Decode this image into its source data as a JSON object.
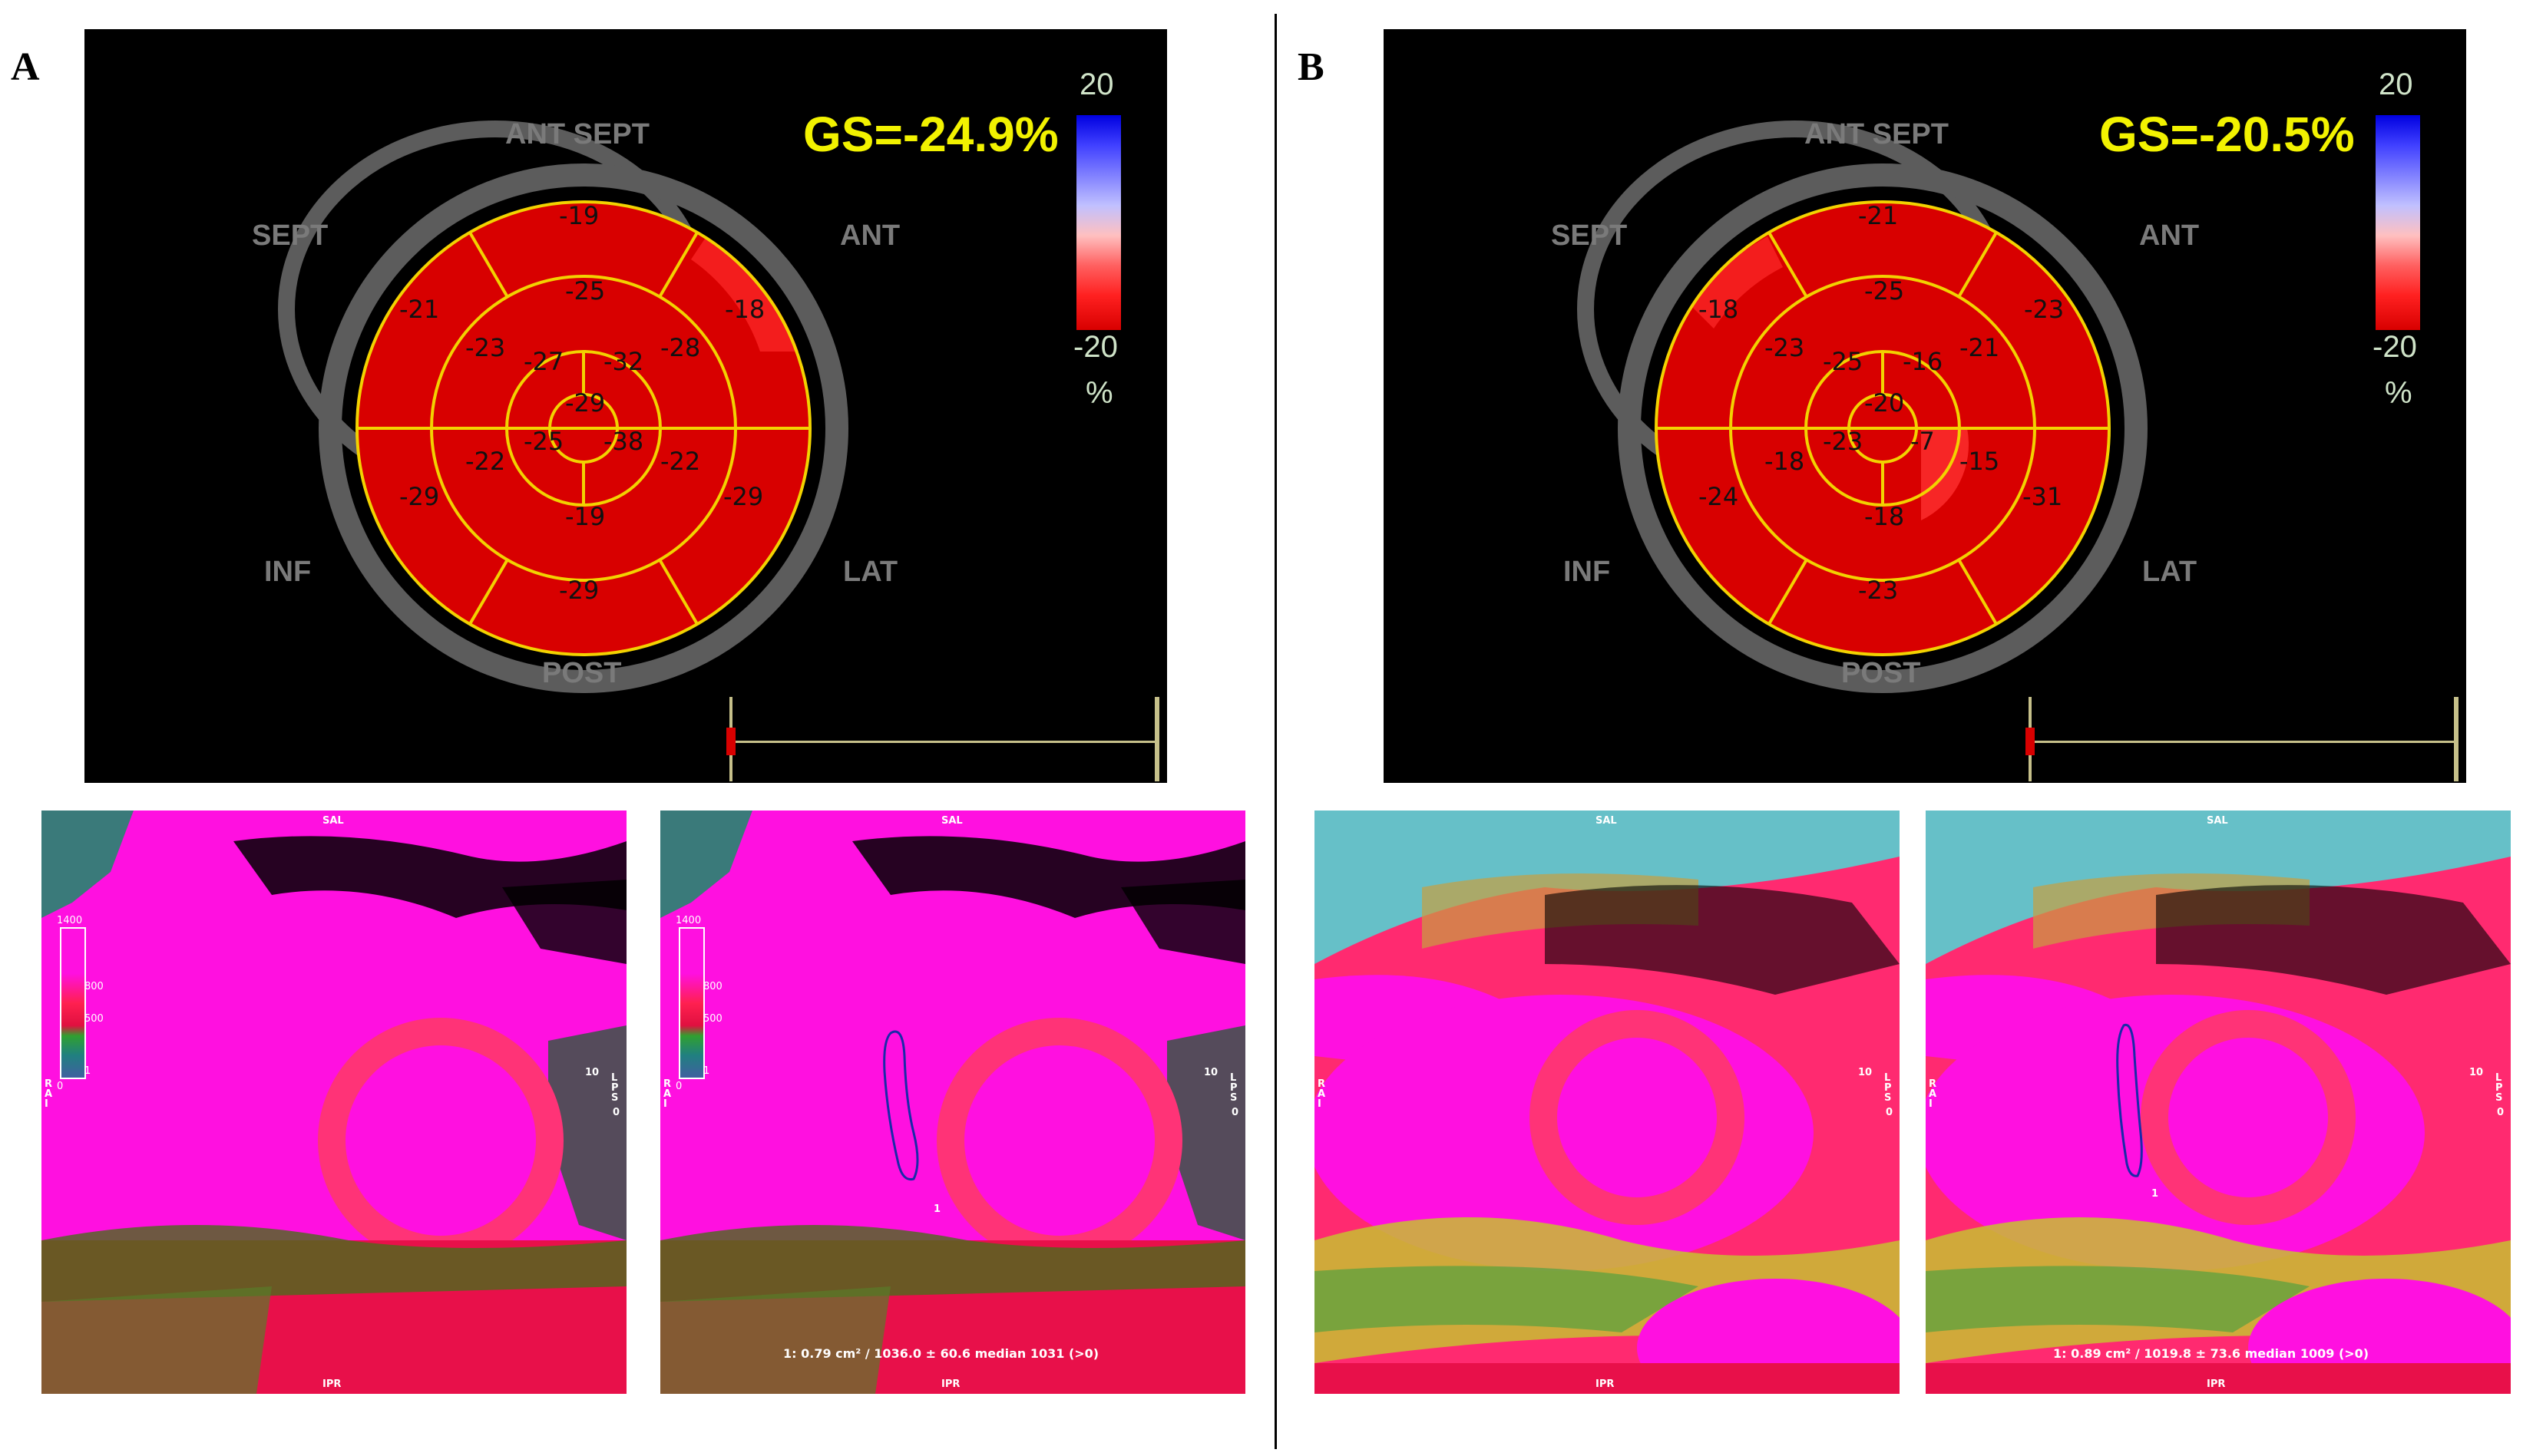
{
  "panels": {
    "A": {
      "letter": "A",
      "gs": "GS=-24.9%",
      "labels": {
        "ant_sept": "ANT SEPT",
        "sept": "SEPT",
        "ant": "ANT",
        "inf": "INF",
        "lat": "LAT",
        "post": "POST"
      },
      "scale": {
        "top": "20",
        "bottom": "-20",
        "unit": "%"
      },
      "segments": {
        "basal": [
          "-19",
          "-18",
          "-29",
          "-29",
          "-29",
          "-21"
        ],
        "mid": [
          "-25",
          "-28",
          "-22",
          "-19",
          "-22",
          "-23"
        ],
        "apical": [
          "-32",
          "-38",
          "-25",
          "-27"
        ],
        "apex": "-29"
      },
      "maps": {
        "top_label": "SAL",
        "bottom_label": "IPR",
        "left_orient": "R A I",
        "right_orient": "L P S",
        "right_num": "10",
        "right_zero": "0",
        "legend": [
          "1400",
          "800",
          "500",
          "1",
          "0"
        ],
        "roi_label": "1",
        "measurement": "1: 0.79 cm² / 1036.0 ± 60.6 median 1031 (>0)"
      }
    },
    "B": {
      "letter": "B",
      "gs": "GS=-20.5%",
      "labels": {
        "ant_sept": "ANT SEPT",
        "sept": "SEPT",
        "ant": "ANT",
        "inf": "INF",
        "lat": "LAT",
        "post": "POST"
      },
      "scale": {
        "top": "20",
        "bottom": "-20",
        "unit": "%"
      },
      "segments": {
        "basal": [
          "-21",
          "-23",
          "-31",
          "-23",
          "-24",
          "-18"
        ],
        "mid": [
          "-25",
          "-21",
          "-15",
          "-18",
          "-18",
          "-23"
        ],
        "apical": [
          "-16",
          "-7",
          "-23",
          "-25"
        ],
        "apex": "-20"
      },
      "maps": {
        "top_label": "SAL",
        "bottom_label": "IPR",
        "left_orient": "R A I",
        "right_orient": "L P S",
        "right_num": "10",
        "right_zero": "0",
        "roi_label": "1",
        "measurement": "1: 0.89 cm² / 1019.8 ± 73.6 median 1009 (>0)"
      }
    }
  },
  "colors": {
    "segment_fill": "#d80000",
    "segment_line": "#f2d200",
    "gs_text": "#f2f200",
    "ring": "#5c5c5c",
    "magenta": "#ff00ff",
    "red": "#ff1a55"
  }
}
